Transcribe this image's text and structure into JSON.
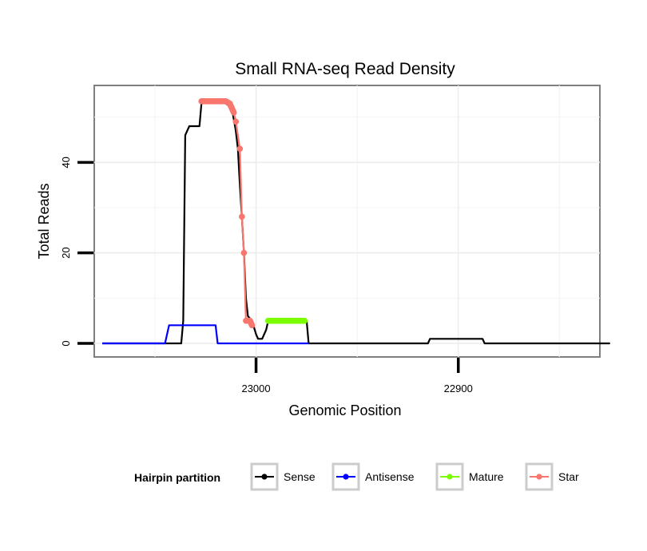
{
  "chart_data": {
    "type": "line",
    "title": "Small RNA-seq Read Density",
    "xlabel": "Genomic Position",
    "ylabel": "Total Reads",
    "x_reversed": true,
    "xlim": [
      23080,
      22830
    ],
    "ylim": [
      -3,
      57
    ],
    "x_ticks": [
      {
        "value": 23000,
        "label": "23000"
      },
      {
        "value": 22900,
        "label": "22900"
      }
    ],
    "y_ticks": [
      {
        "value": 0,
        "label": "0"
      },
      {
        "value": 20,
        "label": "20"
      },
      {
        "value": 40,
        "label": "40"
      }
    ],
    "grid": true,
    "legend_position": "bottom",
    "legend_title": "Hairpin partition",
    "series": [
      {
        "name": "Sense",
        "color": "#000000",
        "points": [
          [
            23076,
            0
          ],
          [
            23037,
            0
          ],
          [
            23036,
            5
          ],
          [
            23035,
            46
          ],
          [
            23033,
            48
          ],
          [
            23028,
            48
          ],
          [
            23027,
            53
          ],
          [
            23025,
            53.5
          ],
          [
            23020,
            53.5
          ],
          [
            23015,
            53
          ],
          [
            23012,
            52
          ],
          [
            23010,
            47
          ],
          [
            23009,
            43
          ],
          [
            23008,
            35
          ],
          [
            23007,
            28
          ],
          [
            23006,
            20
          ],
          [
            23005,
            10
          ],
          [
            23004,
            6
          ],
          [
            23002,
            5
          ],
          [
            23000,
            2
          ],
          [
            22999,
            1
          ],
          [
            22997,
            1
          ],
          [
            22995,
            3
          ],
          [
            22994,
            5
          ],
          [
            22975,
            5
          ],
          [
            22974,
            0
          ],
          [
            22915,
            0
          ],
          [
            22914,
            1
          ],
          [
            22888,
            1
          ],
          [
            22887,
            0
          ],
          [
            22825,
            0
          ]
        ]
      },
      {
        "name": "Antisense",
        "color": "#0000ff",
        "points": [
          [
            23076,
            0
          ],
          [
            23045,
            0
          ],
          [
            23043,
            4
          ],
          [
            23020,
            4
          ],
          [
            23019,
            0
          ],
          [
            22974,
            0
          ]
        ]
      },
      {
        "name": "Mature",
        "color": "#7cfc00",
        "points": [
          [
            22994,
            5
          ],
          [
            22991,
            5
          ],
          [
            22988,
            5
          ],
          [
            22985,
            5
          ],
          [
            22982,
            5
          ],
          [
            22979,
            5
          ],
          [
            22976,
            5
          ]
        ]
      },
      {
        "name": "Star",
        "color": "#f8766d",
        "points": [
          [
            23027,
            53.5
          ],
          [
            23024,
            53.5
          ],
          [
            23021,
            53.5
          ],
          [
            23018,
            53.5
          ],
          [
            23015,
            53.5
          ],
          [
            23013,
            53
          ],
          [
            23012,
            52
          ],
          [
            23011,
            51
          ],
          [
            23010,
            49
          ],
          [
            23008,
            43
          ],
          [
            23007,
            28
          ],
          [
            23006,
            20
          ],
          [
            23005,
            5
          ],
          [
            23003,
            5
          ],
          [
            23002,
            4
          ]
        ]
      }
    ]
  }
}
